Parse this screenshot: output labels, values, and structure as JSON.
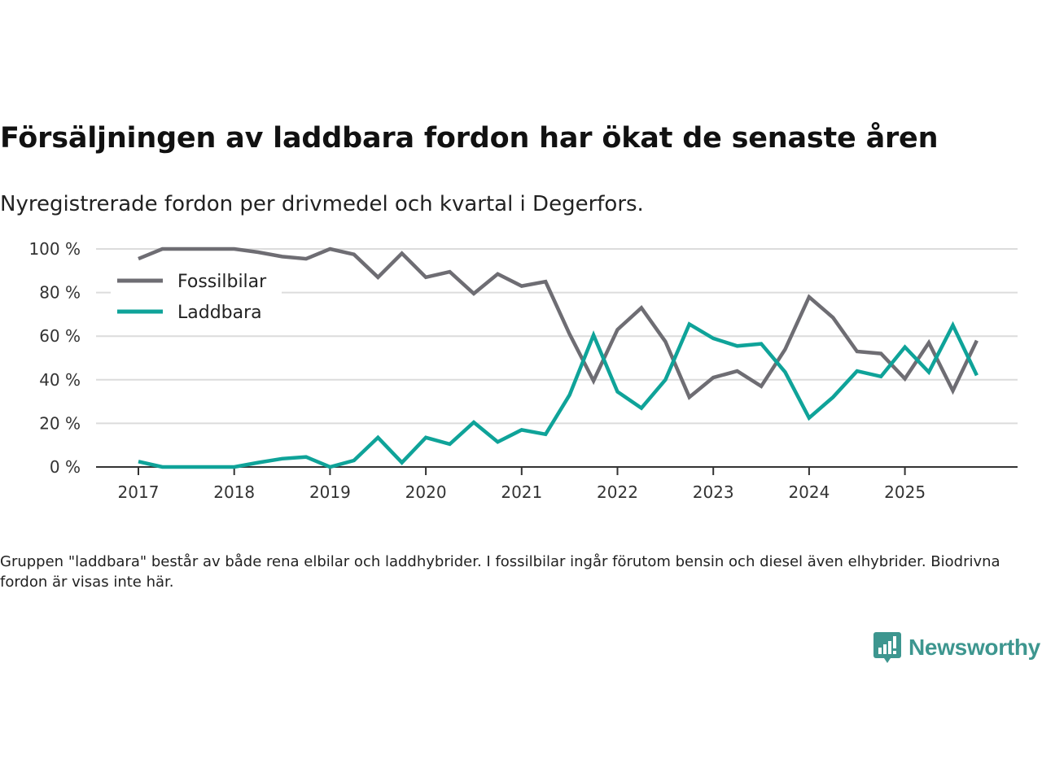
{
  "title": "Försäljningen av laddbara fordon har ökat de senaste åren",
  "subtitle": "Nyregistrerade fordon per drivmedel och kvartal i Degerfors.",
  "note": "Gruppen \"laddbara\" består av både rena elbilar och laddhybrider. I fossilbilar ingår förutom bensin och diesel även elhybrider. Biodrivna fordon är visas inte här.",
  "brand": {
    "name": "Newsworthy",
    "icon": "newsworthy-logo-icon",
    "color": "#3d968f"
  },
  "chart_data": {
    "type": "line",
    "title": "Försäljningen av laddbara fordon har ökat de senaste åren",
    "subtitle": "Nyregistrerade fordon per drivmedel och kvartal i Degerfors.",
    "xlabel": "",
    "ylabel": "",
    "x_start": 2017.0,
    "x_step": 0.25,
    "x_ticks": [
      "2017",
      "2018",
      "2019",
      "2020",
      "2021",
      "2022",
      "2023",
      "2024",
      "2025"
    ],
    "x_tick_values": [
      2017,
      2018,
      2019,
      2020,
      2021,
      2022,
      2023,
      2024,
      2025
    ],
    "xlim": [
      2016.6,
      2026.25
    ],
    "ylim": [
      0,
      100
    ],
    "y_ticks": [
      0,
      20,
      40,
      60,
      80,
      100
    ],
    "y_tick_labels": [
      "0 %",
      "20 %",
      "40 %",
      "60 %",
      "80 %",
      "100 %"
    ],
    "grid": true,
    "legend_position": "top-left",
    "series": [
      {
        "name": "Fossilbilar",
        "color": "#6e6d73",
        "values": [
          95.5,
          100,
          100,
          100,
          100,
          98.5,
          96.5,
          95.5,
          100,
          97.5,
          87,
          98,
          87,
          89.5,
          79.5,
          88.5,
          83,
          85,
          61,
          39.5,
          63,
          73,
          57.5,
          32,
          41,
          44,
          37,
          54,
          78,
          68.5,
          53,
          52,
          40.5,
          57,
          35,
          58
        ]
      },
      {
        "name": "Laddbara",
        "color": "#0fa399",
        "values": [
          2.5,
          0,
          0,
          0,
          0,
          2,
          3.8,
          4.6,
          0,
          3,
          13.5,
          2,
          13.5,
          10.5,
          20.5,
          11.5,
          17,
          15,
          33,
          60.5,
          34.5,
          27,
          40,
          65.5,
          59,
          55.5,
          56.5,
          43.5,
          22.5,
          32,
          44,
          41.5,
          55,
          43.5,
          65,
          42
        ]
      }
    ]
  }
}
